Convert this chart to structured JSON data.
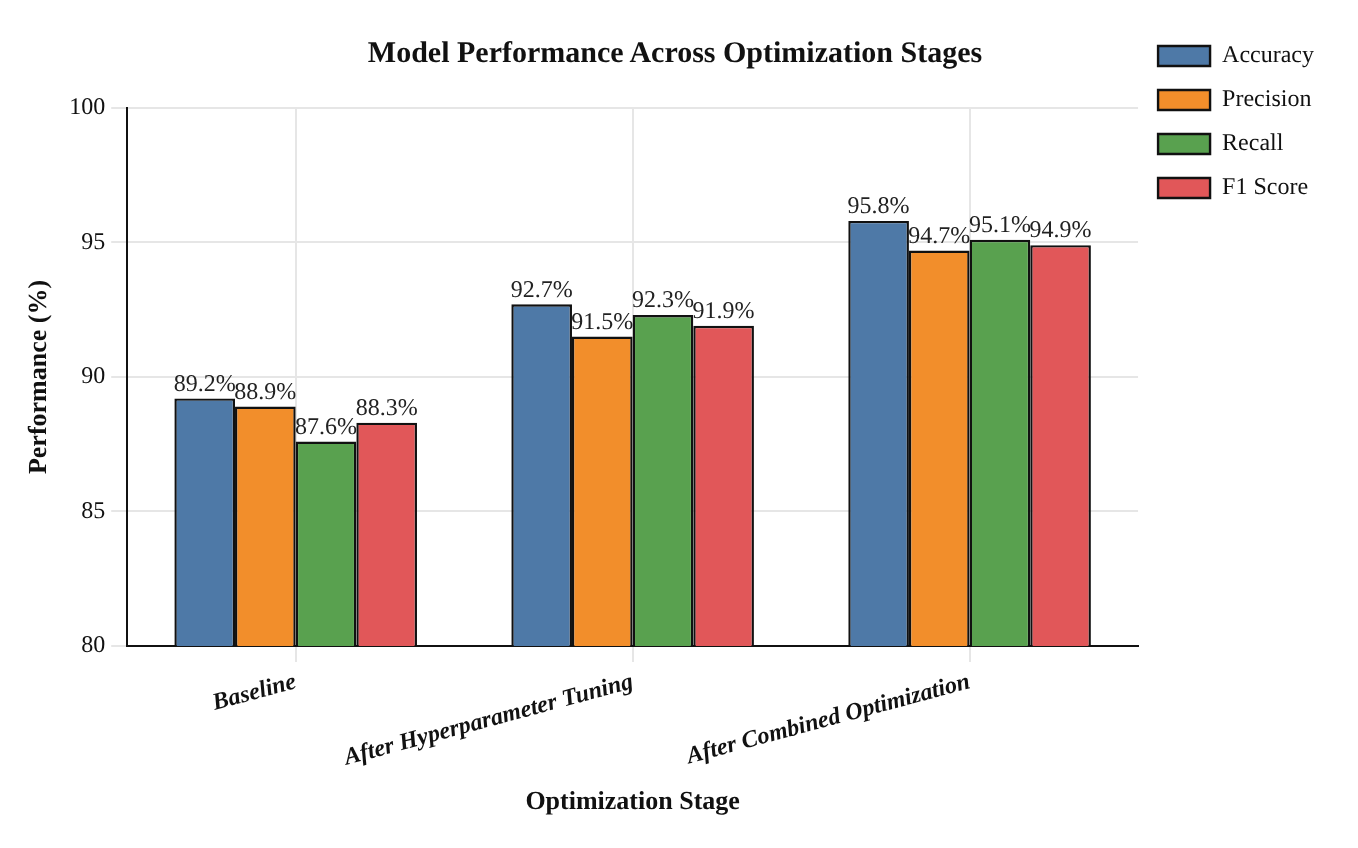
{
  "chart_data": {
    "type": "bar",
    "title": "Model Performance Across Optimization Stages",
    "xlabel": "Optimization Stage",
    "ylabel": "Performance (%)",
    "categories": [
      "Baseline",
      "After Hyperparameter Tuning",
      "After Combined Optimization"
    ],
    "series": [
      {
        "name": "Accuracy",
        "color": "#4e79a7",
        "values": [
          89.2,
          92.7,
          95.8
        ],
        "value_labels": [
          "89.2%",
          "92.7%",
          "95.8%"
        ]
      },
      {
        "name": "Precision",
        "color": "#f28e2b",
        "values": [
          88.9,
          91.5,
          94.7
        ],
        "value_labels": [
          "88.9%",
          "91.5%",
          "94.7%"
        ]
      },
      {
        "name": "Recall",
        "color": "#59a14f",
        "values": [
          87.6,
          92.3,
          95.1
        ],
        "value_labels": [
          "87.6%",
          "92.3%",
          "95.1%"
        ]
      },
      {
        "name": "F1 Score",
        "color": "#e15759",
        "values": [
          88.3,
          91.9,
          94.9
        ],
        "value_labels": [
          "88.3%",
          "91.9%",
          "94.9%"
        ]
      }
    ],
    "ylim": [
      80,
      100
    ],
    "yticks": [
      80,
      85,
      90,
      95,
      100
    ],
    "grid": true,
    "legend": "top right"
  }
}
